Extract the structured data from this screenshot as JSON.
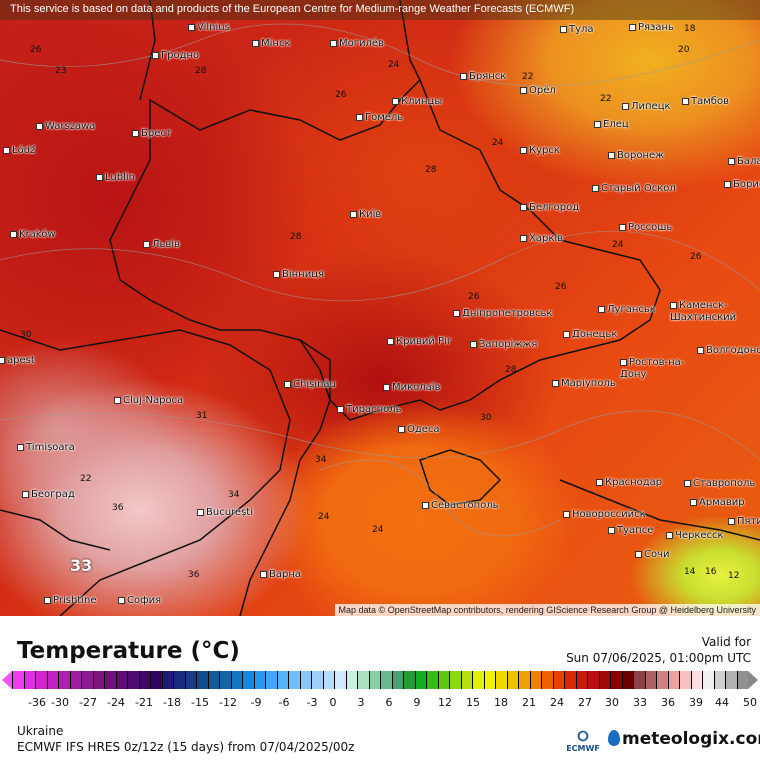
{
  "notice": "This service is based on data and products of the European Centre for Medium-range Weather Forecasts (ECMWF)",
  "attribution": "Map data © OpenStreetMap contributors, rendering GIScience Research Group @ Heidelberg University",
  "cities": [
    "Vilnius",
    "Рязань",
    "Тула",
    "Мінск",
    "Могилёв",
    "Гродно",
    "Warszawa",
    "Брест",
    "Łódź",
    "Lublin",
    "Kraków",
    "Львів",
    "Київ",
    "Вінниця",
    "Клинцы",
    "Гомель",
    "Брянск",
    "Орёл",
    "Липецк",
    "Тамбов",
    "Елец",
    "Курск",
    "Воронеж",
    "Старый Оскол",
    "Белгород",
    "Харків",
    "Россошь",
    "Дніпропетровськ",
    "Запоріжжя",
    "Кривий Ріг",
    "Луганськ",
    "Каменск-Шахтинский",
    "Донецьк",
    "Ростов-на-Дону",
    "Волгодонск",
    "Маріуполь",
    "Chișinău",
    "Миколаїв",
    "Тирасполь",
    "Одеса",
    "Cluj-Napoca",
    "Timișoara",
    "Београд",
    "București",
    "Севастополь",
    "Краснодар",
    "Ставрополь",
    "Армавир",
    "Новороссийск",
    "Туапсе",
    "Черкесск",
    "Пятиг",
    "Сочи",
    "Варна",
    "София",
    "Prishtine",
    "Бала",
    "Борис",
    "apest"
  ],
  "temps": [
    "26",
    "23",
    "28",
    "26",
    "24",
    "22",
    "20",
    "22",
    "24",
    "28",
    "28",
    "26",
    "24",
    "26",
    "28",
    "30",
    "34",
    "24",
    "24",
    "22",
    "26",
    "31",
    "30",
    "18",
    "14",
    "16",
    "12",
    "36",
    "36",
    "34",
    "33"
  ],
  "legend": {
    "title": "Temperature (°C)",
    "valid_label": "Valid for",
    "valid_time": "Sun 07/06/2025, 01:00pm UTC",
    "ticks": [
      "-36",
      "-30",
      "-27",
      "-24",
      "-21",
      "-18",
      "-15",
      "-12",
      "-9",
      "-6",
      "-3",
      "0",
      "3",
      "6",
      "9",
      "12",
      "15",
      "18",
      "21",
      "24",
      "27",
      "30",
      "33",
      "36",
      "39",
      "44",
      "50"
    ],
    "colors": [
      "#f03cf0",
      "#e02ee0",
      "#d028d0",
      "#c024c0",
      "#b020b0",
      "#a01ca0",
      "#901890",
      "#801480",
      "#70107a",
      "#600c78",
      "#500a70",
      "#400868",
      "#300660",
      "#1e1a78",
      "#1a2a80",
      "#183a88",
      "#164a90",
      "#145a98",
      "#1068a8",
      "#1078c0",
      "#1488e0",
      "#2898f0",
      "#40a8f8",
      "#58b4f8",
      "#70c0f8",
      "#88c8f8",
      "#a0d0f8",
      "#b8dcf8",
      "#d0e8fa",
      "#c8f0e0",
      "#a8e0c0",
      "#88d0a8",
      "#68b890",
      "#48a070",
      "#20a030",
      "#10b020",
      "#30c010",
      "#60c810",
      "#90d810",
      "#b8e010",
      "#e0f000",
      "#f0f000",
      "#f0d800",
      "#f0c000",
      "#f0a000",
      "#f08000",
      "#f06000",
      "#e84000",
      "#d82800",
      "#c81810",
      "#b81010",
      "#a00808",
      "#880000",
      "#700000",
      "#904040",
      "#b06060",
      "#d08080",
      "#f0a0a0",
      "#f8c0c0",
      "#fce0e0",
      "#f0f0f0",
      "#d0d0d0",
      "#b0b0b0",
      "#909090"
    ]
  },
  "region": "Ukraine",
  "model": "ECMWF IFS HRES 0z/12z (15 days) from  07/04/2025/00z",
  "ecmwf_logo": "ECMWF",
  "brand": "meteologix.com"
}
